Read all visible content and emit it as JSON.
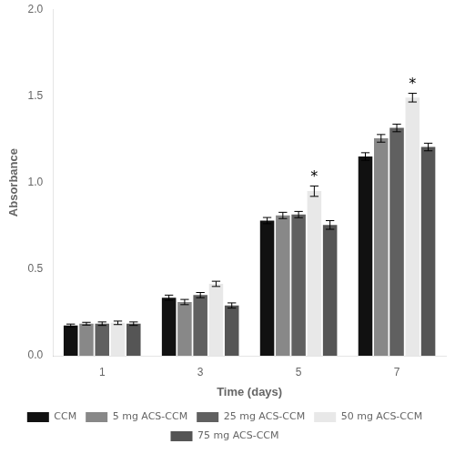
{
  "chart_data": {
    "type": "bar",
    "xlabel": "Time (days)",
    "ylabel": "Absorbance",
    "categories": [
      1,
      3,
      5,
      7
    ],
    "series": [
      {
        "name": "CCM",
        "color": "#111111",
        "values": [
          0.175,
          0.335,
          0.78,
          1.15
        ],
        "errors": [
          0.008,
          0.015,
          0.018,
          0.022
        ]
      },
      {
        "name": "5 mg ACS-CCM",
        "color": "#888888",
        "values": [
          0.185,
          0.31,
          0.81,
          1.255
        ],
        "errors": [
          0.008,
          0.015,
          0.018,
          0.022
        ]
      },
      {
        "name": "25 mg ACS-CCM",
        "color": "#606060",
        "values": [
          0.185,
          0.35,
          0.815,
          1.315
        ],
        "errors": [
          0.01,
          0.015,
          0.018,
          0.022
        ]
      },
      {
        "name": "50 mg ACS-CCM",
        "color": "#e8e8e8",
        "values": [
          0.19,
          0.415,
          0.95,
          1.49
        ],
        "errors": [
          0.01,
          0.015,
          0.03,
          0.025
        ]
      },
      {
        "name": "75 mg ACS-CCM",
        "color": "#555555",
        "values": [
          0.185,
          0.29,
          0.755,
          1.205
        ],
        "errors": [
          0.01,
          0.015,
          0.025,
          0.022
        ]
      }
    ],
    "ylim": [
      0.0,
      2.0
    ],
    "yticks": [
      {
        "value": 0.0,
        "label": "0.0"
      },
      0.5,
      {
        "value": 1.0,
        "label": "1.0"
      },
      1.5,
      {
        "value": 2.0,
        "label": "2.0"
      }
    ],
    "annotations": [
      {
        "text": "*",
        "series": "50 mg ACS-CCM",
        "category": 5
      },
      {
        "text": "*",
        "series": "50 mg ACS-CCM",
        "category": 7
      }
    ],
    "grid": false,
    "legend": "bottom"
  }
}
